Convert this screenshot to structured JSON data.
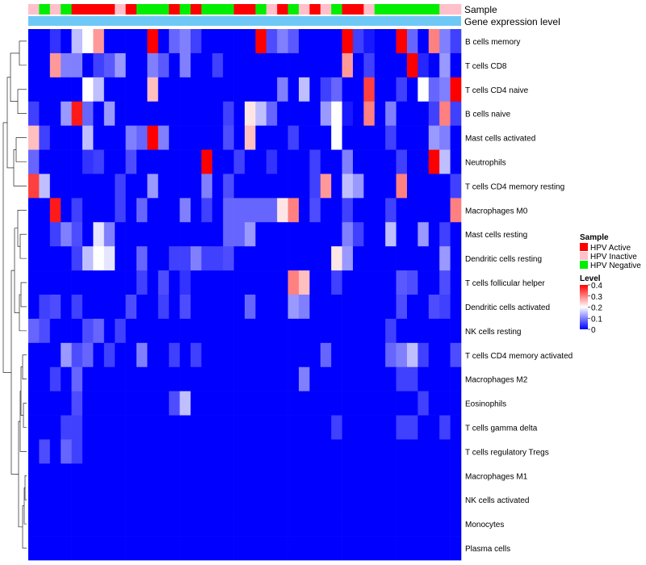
{
  "chart_data": {
    "type": "heatmap",
    "annotation_rows": [
      "Sample",
      "Gene expression level"
    ],
    "sample_groups": [
      "HPV Inactive",
      "HPV Negative",
      "HPV Inactive",
      "HPV Negative",
      "HPV Active",
      "HPV Active",
      "HPV Active",
      "HPV Active",
      "HPV Inactive",
      "HPV Active",
      "HPV Negative",
      "HPV Negative",
      "HPV Negative",
      "HPV Active",
      "HPV Negative",
      "HPV Active",
      "HPV Negative",
      "HPV Negative",
      "HPV Negative",
      "HPV Active",
      "HPV Active",
      "HPV Negative",
      "HPV Inactive",
      "HPV Active",
      "HPV Negative",
      "HPV Inactive",
      "HPV Active",
      "HPV Inactive",
      "HPV Negative",
      "HPV Active",
      "HPV Active",
      "HPV Inactive",
      "HPV Negative",
      "HPV Negative",
      "HPV Negative",
      "HPV Negative",
      "HPV Negative",
      "HPV Negative",
      "HPV Inactive",
      "HPV Inactive"
    ],
    "rows": [
      "B cells memory",
      "T cells CD8",
      "T cells CD4 naive",
      "B cells naive",
      "Mast cells activated",
      "Neutrophils",
      "T cells CD4 memory resting",
      "Macrophages M0",
      "Mast cells resting",
      "Dendritic cells resting",
      "T cells follicular helper",
      "Dendritic cells activated",
      "NK cells resting",
      "T cells CD4 memory activated",
      "Macrophages M2",
      "Eosinophils",
      "T cells gamma delta",
      "T cells regulatory  Tregs",
      "Macrophages M1",
      "NK cells activated",
      "Monocytes",
      "Plasma cells"
    ],
    "values": [
      [
        0.0,
        0.0,
        0.04,
        0.0,
        0.15,
        0.2,
        0.28,
        0.0,
        0.0,
        0.0,
        0.0,
        0.4,
        0.0,
        0.08,
        0.1,
        0.05,
        0.0,
        0.0,
        0.0,
        0.0,
        0.0,
        0.4,
        0.06,
        0.1,
        0.07,
        0.0,
        0.0,
        0.0,
        0.0,
        0.4,
        0.05,
        0.02,
        0.0,
        0.0,
        0.4,
        0.08,
        0.0,
        0.3,
        0.1,
        0.05
      ],
      [
        0.0,
        0.0,
        0.28,
        0.1,
        0.1,
        0.0,
        0.05,
        0.07,
        0.12,
        0.0,
        0.0,
        0.1,
        0.07,
        0.0,
        0.1,
        0.0,
        0.0,
        0.05,
        0.0,
        0.0,
        0.0,
        0.0,
        0.0,
        0.0,
        0.0,
        0.0,
        0.0,
        0.0,
        0.0,
        0.28,
        0.0,
        0.05,
        0.0,
        0.0,
        0.0,
        0.4,
        0.03,
        0.0,
        0.12,
        0.0
      ],
      [
        0.0,
        0.0,
        0.0,
        0.0,
        0.0,
        0.2,
        0.15,
        0.0,
        0.0,
        0.0,
        0.0,
        0.25,
        0.0,
        0.0,
        0.0,
        0.0,
        0.0,
        0.0,
        0.0,
        0.0,
        0.0,
        0.0,
        0.0,
        0.1,
        0.0,
        0.15,
        0.0,
        0.05,
        0.08,
        0.0,
        0.0,
        0.35,
        0.0,
        0.0,
        0.05,
        0.0,
        0.2,
        0.08,
        0.1,
        0.4
      ],
      [
        0.05,
        0.0,
        0.0,
        0.12,
        0.38,
        0.08,
        0.0,
        0.12,
        0.0,
        0.0,
        0.0,
        0.0,
        0.0,
        0.0,
        0.0,
        0.0,
        0.0,
        0.0,
        0.05,
        0.0,
        0.22,
        0.15,
        0.08,
        0.0,
        0.0,
        0.0,
        0.0,
        0.12,
        0.2,
        0.02,
        0.0,
        0.3,
        0.0,
        0.1,
        0.0,
        0.0,
        0.0,
        0.05,
        0.3,
        0.05
      ],
      [
        0.25,
        0.05,
        0.0,
        0.0,
        0.0,
        0.15,
        0.0,
        0.0,
        0.0,
        0.1,
        0.08,
        0.4,
        0.1,
        0.0,
        0.0,
        0.0,
        0.0,
        0.0,
        0.06,
        0.0,
        0.25,
        0.0,
        0.0,
        0.0,
        0.05,
        0.0,
        0.0,
        0.0,
        0.2,
        0.0,
        0.0,
        0.0,
        0.0,
        0.05,
        0.0,
        0.0,
        0.0,
        0.12,
        0.1,
        0.0
      ],
      [
        0.08,
        0.0,
        0.0,
        0.0,
        0.0,
        0.04,
        0.05,
        0.0,
        0.0,
        0.06,
        0.0,
        0.0,
        0.0,
        0.0,
        0.0,
        0.0,
        0.4,
        0.0,
        0.0,
        0.05,
        0.0,
        0.0,
        0.04,
        0.0,
        0.0,
        0.0,
        0.05,
        0.0,
        0.0,
        0.1,
        0.0,
        0.0,
        0.0,
        0.0,
        0.05,
        0.0,
        0.0,
        0.4,
        0.15,
        0.0
      ],
      [
        0.35,
        0.15,
        0.0,
        0.0,
        0.0,
        0.0,
        0.0,
        0.0,
        0.05,
        0.0,
        0.0,
        0.12,
        0.0,
        0.0,
        0.0,
        0.0,
        0.1,
        0.0,
        0.06,
        0.0,
        0.0,
        0.0,
        0.0,
        0.0,
        0.0,
        0.0,
        0.05,
        0.28,
        0.0,
        0.15,
        0.12,
        0.0,
        0.0,
        0.0,
        0.3,
        0.0,
        0.0,
        0.0,
        0.0,
        0.05
      ],
      [
        0.0,
        0.0,
        0.38,
        0.0,
        0.05,
        0.0,
        0.0,
        0.0,
        0.05,
        0.0,
        0.08,
        0.0,
        0.0,
        0.0,
        0.1,
        0.0,
        0.05,
        0.0,
        0.08,
        0.08,
        0.08,
        0.08,
        0.08,
        0.22,
        0.3,
        0.0,
        0.06,
        0.0,
        0.0,
        0.05,
        0.0,
        0.0,
        0.0,
        0.05,
        0.0,
        0.0,
        0.0,
        0.0,
        0.0,
        0.3
      ],
      [
        0.0,
        0.0,
        0.05,
        0.1,
        0.06,
        0.0,
        0.18,
        0.1,
        0.0,
        0.0,
        0.0,
        0.0,
        0.0,
        0.0,
        0.0,
        0.0,
        0.0,
        0.0,
        0.08,
        0.08,
        0.12,
        0.0,
        0.0,
        0.0,
        0.0,
        0.0,
        0.0,
        0.0,
        0.0,
        0.1,
        0.05,
        0.0,
        0.0,
        0.15,
        0.0,
        0.0,
        0.12,
        0.0,
        0.05,
        0.0
      ],
      [
        0.0,
        0.0,
        0.0,
        0.0,
        0.05,
        0.15,
        0.2,
        0.18,
        0.0,
        0.0,
        0.08,
        0.0,
        0.0,
        0.05,
        0.05,
        0.1,
        0.05,
        0.05,
        0.06,
        0.0,
        0.0,
        0.0,
        0.0,
        0.0,
        0.0,
        0.0,
        0.0,
        0.0,
        0.22,
        0.12,
        0.0,
        0.0,
        0.0,
        0.0,
        0.0,
        0.0,
        0.0,
        0.0,
        0.12,
        0.0
      ],
      [
        0.0,
        0.0,
        0.0,
        0.0,
        0.0,
        0.0,
        0.0,
        0.0,
        0.0,
        0.0,
        0.05,
        0.0,
        0.06,
        0.0,
        0.04,
        0.0,
        0.0,
        0.0,
        0.0,
        0.0,
        0.0,
        0.0,
        0.0,
        0.0,
        0.3,
        0.25,
        0.0,
        0.0,
        0.05,
        0.0,
        0.0,
        0.0,
        0.0,
        0.0,
        0.07,
        0.06,
        0.0,
        0.0,
        0.06,
        0.0
      ],
      [
        0.0,
        0.05,
        0.06,
        0.0,
        0.05,
        0.0,
        0.0,
        0.0,
        0.0,
        0.06,
        0.0,
        0.0,
        0.05,
        0.0,
        0.06,
        0.0,
        0.0,
        0.0,
        0.0,
        0.0,
        0.08,
        0.0,
        0.0,
        0.0,
        0.12,
        0.1,
        0.0,
        0.0,
        0.0,
        0.0,
        0.0,
        0.0,
        0.0,
        0.0,
        0.06,
        0.0,
        0.0,
        0.06,
        0.05,
        0.0
      ],
      [
        0.08,
        0.06,
        0.0,
        0.0,
        0.0,
        0.06,
        0.08,
        0.0,
        0.05,
        0.0,
        0.0,
        0.0,
        0.0,
        0.0,
        0.0,
        0.0,
        0.0,
        0.0,
        0.0,
        0.0,
        0.0,
        0.0,
        0.0,
        0.0,
        0.0,
        0.0,
        0.0,
        0.0,
        0.0,
        0.0,
        0.0,
        0.0,
        0.0,
        0.05,
        0.0,
        0.0,
        0.0,
        0.0,
        0.0,
        0.0
      ],
      [
        0.0,
        0.0,
        0.0,
        0.12,
        0.06,
        0.08,
        0.0,
        0.05,
        0.0,
        0.0,
        0.1,
        0.0,
        0.0,
        0.05,
        0.0,
        0.05,
        0.0,
        0.0,
        0.0,
        0.0,
        0.0,
        0.0,
        0.0,
        0.0,
        0.0,
        0.0,
        0.0,
        0.08,
        0.0,
        0.0,
        0.0,
        0.0,
        0.0,
        0.08,
        0.1,
        0.15,
        0.05,
        0.0,
        0.0,
        0.06
      ],
      [
        0.0,
        0.0,
        0.05,
        0.0,
        0.08,
        0.0,
        0.0,
        0.0,
        0.0,
        0.0,
        0.0,
        0.0,
        0.0,
        0.0,
        0.0,
        0.0,
        0.0,
        0.0,
        0.0,
        0.0,
        0.0,
        0.0,
        0.0,
        0.0,
        0.0,
        0.1,
        0.0,
        0.0,
        0.0,
        0.0,
        0.0,
        0.0,
        0.0,
        0.0,
        0.05,
        0.05,
        0.0,
        0.0,
        0.0,
        0.0
      ],
      [
        0.0,
        0.0,
        0.0,
        0.0,
        0.06,
        0.0,
        0.0,
        0.0,
        0.0,
        0.0,
        0.0,
        0.0,
        0.0,
        0.06,
        0.15,
        0.0,
        0.0,
        0.0,
        0.0,
        0.0,
        0.0,
        0.0,
        0.0,
        0.0,
        0.0,
        0.0,
        0.0,
        0.0,
        0.0,
        0.0,
        0.0,
        0.0,
        0.0,
        0.0,
        0.0,
        0.0,
        0.05,
        0.0,
        0.0,
        0.0
      ],
      [
        0.0,
        0.0,
        0.0,
        0.05,
        0.05,
        0.0,
        0.0,
        0.0,
        0.0,
        0.0,
        0.0,
        0.0,
        0.0,
        0.0,
        0.0,
        0.0,
        0.0,
        0.0,
        0.0,
        0.0,
        0.0,
        0.0,
        0.0,
        0.0,
        0.0,
        0.0,
        0.0,
        0.0,
        0.05,
        0.0,
        0.0,
        0.0,
        0.0,
        0.0,
        0.05,
        0.05,
        0.0,
        0.0,
        0.05,
        0.0
      ],
      [
        0.0,
        0.06,
        0.0,
        0.08,
        0.05,
        0.0,
        0.0,
        0.0,
        0.0,
        0.0,
        0.0,
        0.0,
        0.0,
        0.0,
        0.0,
        0.0,
        0.0,
        0.0,
        0.0,
        0.0,
        0.0,
        0.0,
        0.0,
        0.0,
        0.0,
        0.0,
        0.0,
        0.0,
        0.0,
        0.0,
        0.0,
        0.0,
        0.0,
        0.0,
        0.0,
        0.0,
        0.0,
        0.0,
        0.0,
        0.0
      ],
      [
        0.0,
        0.0,
        0.0,
        0.0,
        0.0,
        0.0,
        0.0,
        0.0,
        0.0,
        0.0,
        0.0,
        0.0,
        0.0,
        0.0,
        0.0,
        0.0,
        0.0,
        0.0,
        0.0,
        0.0,
        0.0,
        0.0,
        0.0,
        0.0,
        0.0,
        0.0,
        0.0,
        0.0,
        0.0,
        0.0,
        0.0,
        0.0,
        0.0,
        0.0,
        0.0,
        0.0,
        0.0,
        0.0,
        0.0,
        0.0
      ],
      [
        0.0,
        0.0,
        0.0,
        0.0,
        0.0,
        0.0,
        0.0,
        0.0,
        0.0,
        0.0,
        0.0,
        0.0,
        0.0,
        0.0,
        0.0,
        0.0,
        0.0,
        0.0,
        0.0,
        0.0,
        0.0,
        0.0,
        0.0,
        0.0,
        0.0,
        0.0,
        0.0,
        0.0,
        0.0,
        0.0,
        0.0,
        0.0,
        0.0,
        0.0,
        0.0,
        0.0,
        0.0,
        0.0,
        0.0,
        0.0
      ],
      [
        0.0,
        0.0,
        0.0,
        0.0,
        0.0,
        0.0,
        0.0,
        0.0,
        0.0,
        0.0,
        0.0,
        0.0,
        0.0,
        0.0,
        0.0,
        0.0,
        0.0,
        0.0,
        0.0,
        0.0,
        0.0,
        0.0,
        0.0,
        0.0,
        0.0,
        0.0,
        0.0,
        0.0,
        0.0,
        0.0,
        0.0,
        0.0,
        0.0,
        0.0,
        0.0,
        0.0,
        0.0,
        0.0,
        0.0,
        0.0
      ],
      [
        0.0,
        0.0,
        0.0,
        0.0,
        0.0,
        0.0,
        0.0,
        0.0,
        0.0,
        0.0,
        0.0,
        0.0,
        0.0,
        0.0,
        0.0,
        0.0,
        0.0,
        0.0,
        0.0,
        0.0,
        0.0,
        0.0,
        0.0,
        0.0,
        0.0,
        0.0,
        0.0,
        0.0,
        0.0,
        0.0,
        0.0,
        0.0,
        0.0,
        0.0,
        0.0,
        0.0,
        0.0,
        0.0,
        0.0,
        0.0
      ]
    ],
    "legend": {
      "sample_title": "Sample",
      "sample_entries": [
        {
          "label": "HPV Active",
          "color": "#ff0000"
        },
        {
          "label": "HPV Inactive",
          "color": "#ffc0cb"
        },
        {
          "label": "HPV Negative",
          "color": "#00ee00"
        }
      ],
      "level_title": "Level",
      "level_ticks": [
        "0.4",
        "0.3",
        "0.2",
        "0.1",
        "0"
      ],
      "range": [
        0,
        0.4
      ]
    },
    "colors": {
      "low": "#0000ff",
      "mid": "#ffffff",
      "high": "#ff0000",
      "expression_bar": "#6ec8f5"
    }
  }
}
